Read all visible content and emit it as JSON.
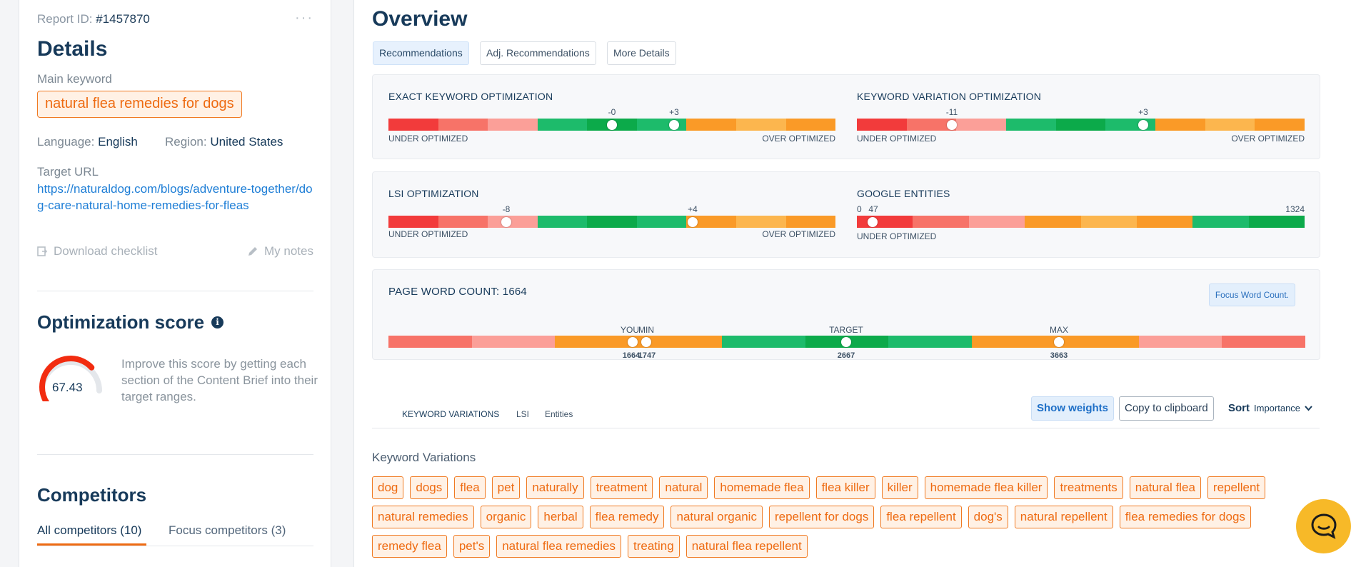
{
  "left": {
    "report_id_label": "Report ID:",
    "report_id": "#1457870",
    "more_icon": "more-dots-icon",
    "details_title": "Details",
    "main_keyword_label": "Main keyword",
    "main_keyword": "natural flea remedies for dogs",
    "language_label": "Language:",
    "language": "English",
    "region_label": "Region:",
    "region": "United States",
    "target_url_label": "Target URL",
    "target_url": "https://naturaldog.com/blogs/adventure-together/dog-care-natural-home-remedies-for-fleas",
    "download_label": "Download checklist",
    "notes_label": "My notes",
    "optimization_title": "Optimization score",
    "score": "67.43",
    "score_value": 67.43,
    "score_desc": "Improve this score by getting each section of the Content Brief into their target ranges.",
    "competitors_title": "Competitors",
    "competitor_tabs": [
      "All competitors (10)",
      "Focus competitors (3)"
    ]
  },
  "overview": {
    "title": "Overview",
    "tabs": [
      "Recommendations",
      "Adj. Recommendations",
      "More Details"
    ],
    "under_label": "UNDER OPTIMIZED",
    "over_label": "OVER OPTIMIZED",
    "meters": {
      "exact": {
        "title": "EXACT KEYWORD OPTIMIZATION",
        "markers": [
          "-0",
          "+3"
        ]
      },
      "variation": {
        "title": "KEYWORD VARIATION OPTIMIZATION",
        "markers": [
          "-11",
          "+3"
        ]
      },
      "lsi": {
        "title": "LSI OPTIMIZATION",
        "markers": [
          "-8",
          "+4"
        ]
      },
      "entities": {
        "title": "GOOGLE ENTITIES",
        "min": "0",
        "value": "47",
        "max": "1324"
      }
    },
    "word_count": {
      "title": "PAGE WORD COUNT: 1664",
      "focus_button": "Focus Word Count.",
      "labels": {
        "you": "YOU",
        "min": "MIN",
        "target": "TARGET",
        "max": "MAX"
      },
      "values": {
        "you": "1664",
        "min": "1747",
        "target": "2667",
        "max": "3663"
      }
    }
  },
  "keywords": {
    "tabs": [
      "KEYWORD VARIATIONS",
      "LSI",
      "Entities"
    ],
    "show_weights": "Show weights",
    "copy": "Copy to clipboard",
    "sort_label": "Sort",
    "sort_value": "Importance",
    "section_title": "Keyword Variations",
    "chips": [
      "dog",
      "dogs",
      "flea",
      "pet",
      "naturally",
      "treatment",
      "natural",
      "homemade flea",
      "flea killer",
      "killer",
      "homemade flea killer",
      "treatments",
      "natural flea",
      "repellent",
      "natural remedies",
      "organic",
      "herbal",
      "flea remedy",
      "natural organic",
      "repellent for dogs",
      "flea repellent",
      "dog's",
      "natural repellent",
      "flea remedies for dogs",
      "remedy flea",
      "pet's",
      "natural flea remedies",
      "treating",
      "natural flea repellent"
    ]
  },
  "colors": {
    "accent_orange": "#ee6b12",
    "red": "#f23b3b",
    "green": "#1dbb6b",
    "dark_green": "#0caa4a",
    "orange": "#fa9a27"
  }
}
